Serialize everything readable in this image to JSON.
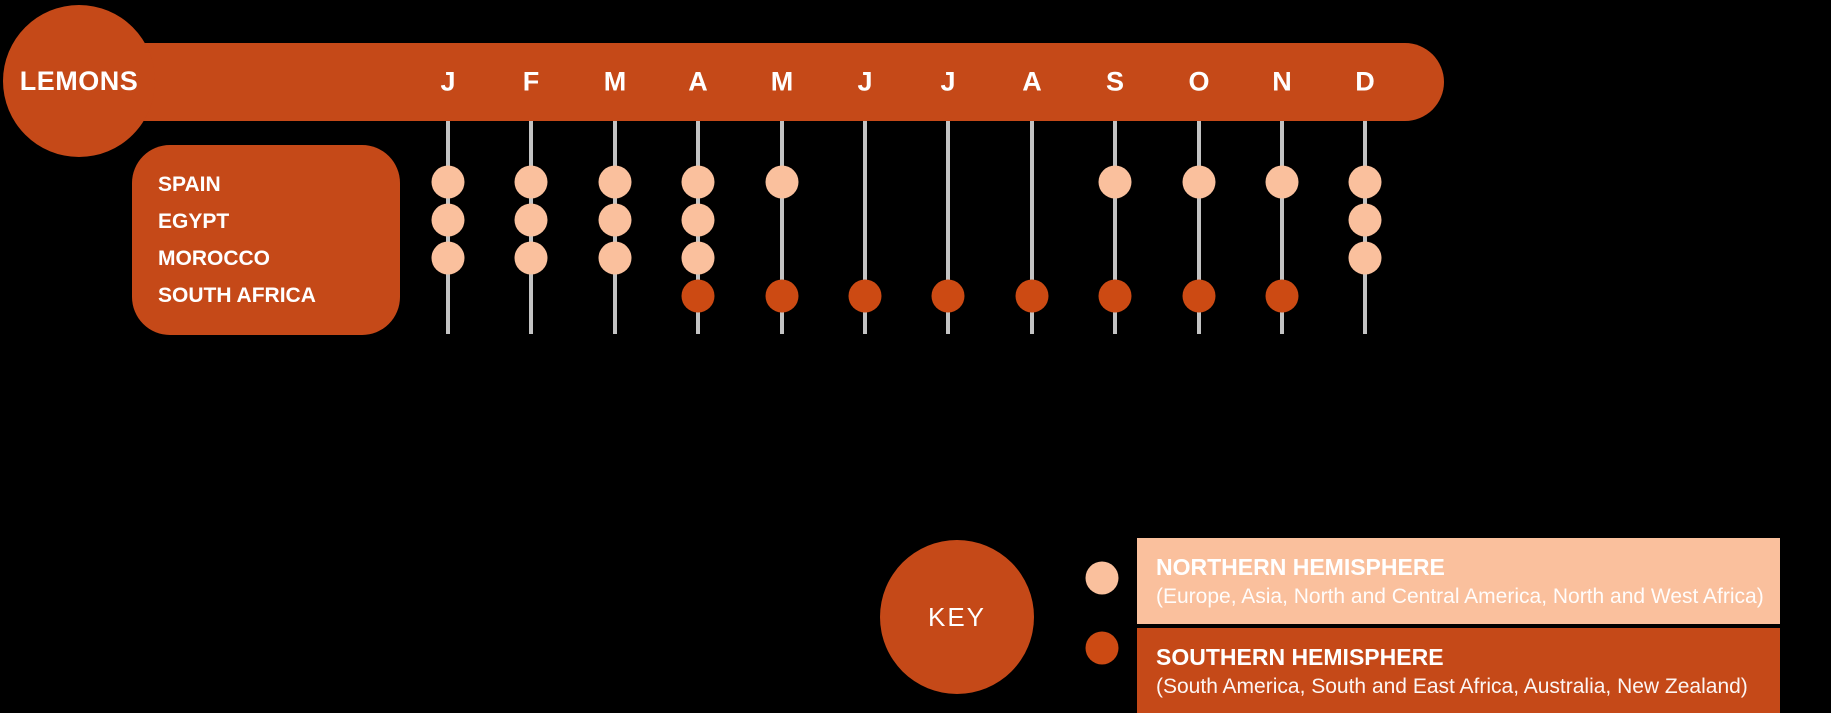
{
  "title": "LEMONS",
  "colors": {
    "background": "#000000",
    "orange": "#C54918",
    "southern_dot": "#CC4A13",
    "peach": "#FAC09D",
    "line": "#C3C3C3",
    "text": "#FFFFFF"
  },
  "chart_data": {
    "type": "dot-matrix",
    "title": "LEMONS",
    "columns": [
      "J",
      "F",
      "M",
      "A",
      "M",
      "J",
      "J",
      "A",
      "S",
      "O",
      "N",
      "D"
    ],
    "rows": [
      {
        "country": "SPAIN",
        "hemisphere": "northern",
        "availability": [
          1,
          1,
          1,
          1,
          1,
          0,
          0,
          0,
          1,
          1,
          1,
          1
        ]
      },
      {
        "country": "EGYPT",
        "hemisphere": "northern",
        "availability": [
          1,
          1,
          1,
          1,
          0,
          0,
          0,
          0,
          0,
          0,
          0,
          1
        ]
      },
      {
        "country": "MOROCCO",
        "hemisphere": "northern",
        "availability": [
          1,
          1,
          1,
          1,
          0,
          0,
          0,
          0,
          0,
          0,
          0,
          1
        ]
      },
      {
        "country": "SOUTH AFRICA",
        "hemisphere": "southern",
        "availability": [
          0,
          0,
          0,
          1,
          1,
          1,
          1,
          1,
          1,
          1,
          1,
          0
        ]
      }
    ],
    "legend_position": "bottom-right",
    "grid": "vertical-lines"
  },
  "key": {
    "label": "KEY",
    "entries": [
      {
        "title": "NORTHERN HEMISPHERE",
        "regions": "(Europe, Asia, North and Central America, North and West Africa)",
        "hemisphere": "northern"
      },
      {
        "title": "SOUTHERN HEMISPHERE",
        "regions": "(South America, South and East Africa, Australia, New Zealand)",
        "hemisphere": "southern"
      }
    ]
  }
}
